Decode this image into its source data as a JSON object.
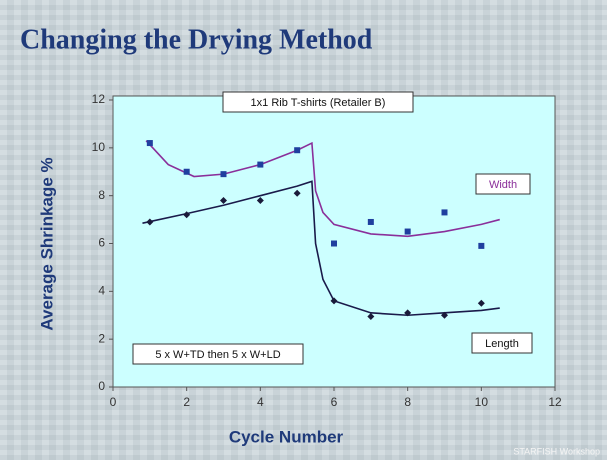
{
  "chart_data": {
    "type": "scatter",
    "title": "Changing the Drying Method",
    "xlabel": "Cycle Number",
    "ylabel": "Average Shrinkage %",
    "annotations": [
      "1x1 Rib T-shirts (Retailer B)",
      "Width",
      "Length",
      "5 x W+TD then 5 x W+LD"
    ],
    "footer": "STARFISH Workshop",
    "xlim": [
      0,
      12
    ],
    "xticks": [
      0,
      2,
      4,
      6,
      8,
      10,
      12
    ],
    "ylim": [
      0,
      12
    ],
    "yticks": [
      0,
      2,
      4,
      6,
      8,
      10,
      12
    ],
    "series": [
      {
        "name": "Width",
        "color": "#1f3f9f",
        "line_color": "#8a2f9a",
        "marker": "square",
        "x": [
          1,
          2,
          3,
          4,
          5,
          6,
          7,
          8,
          9,
          10
        ],
        "values": [
          10.2,
          9.0,
          8.9,
          9.3,
          9.9,
          6.0,
          6.9,
          6.5,
          7.3,
          5.9
        ],
        "fit": {
          "x": [
            0.9,
            1.5,
            2.2,
            3,
            4,
            5,
            5.4,
            5.5,
            5.7,
            6,
            7,
            8,
            9,
            10,
            10.5
          ],
          "values": [
            10.3,
            9.3,
            8.8,
            8.9,
            9.3,
            9.9,
            10.2,
            8.2,
            7.3,
            6.8,
            6.4,
            6.3,
            6.5,
            6.8,
            7.0
          ]
        }
      },
      {
        "name": "Length",
        "color": "#1a1a3a",
        "line_color": "#1a1a4a",
        "marker": "diamond",
        "x": [
          1,
          2,
          3,
          4,
          5,
          6,
          7,
          8,
          9,
          10
        ],
        "values": [
          6.9,
          7.2,
          7.8,
          7.8,
          8.1,
          3.6,
          2.95,
          3.1,
          3.0,
          3.5
        ],
        "fit": {
          "x": [
            0.8,
            2,
            3,
            4,
            5,
            5.4,
            5.5,
            5.7,
            6,
            7,
            8,
            9,
            10,
            10.5
          ],
          "values": [
            6.85,
            7.25,
            7.6,
            8.0,
            8.4,
            8.6,
            6.0,
            4.5,
            3.6,
            3.1,
            3.0,
            3.1,
            3.2,
            3.3
          ]
        }
      }
    ]
  }
}
